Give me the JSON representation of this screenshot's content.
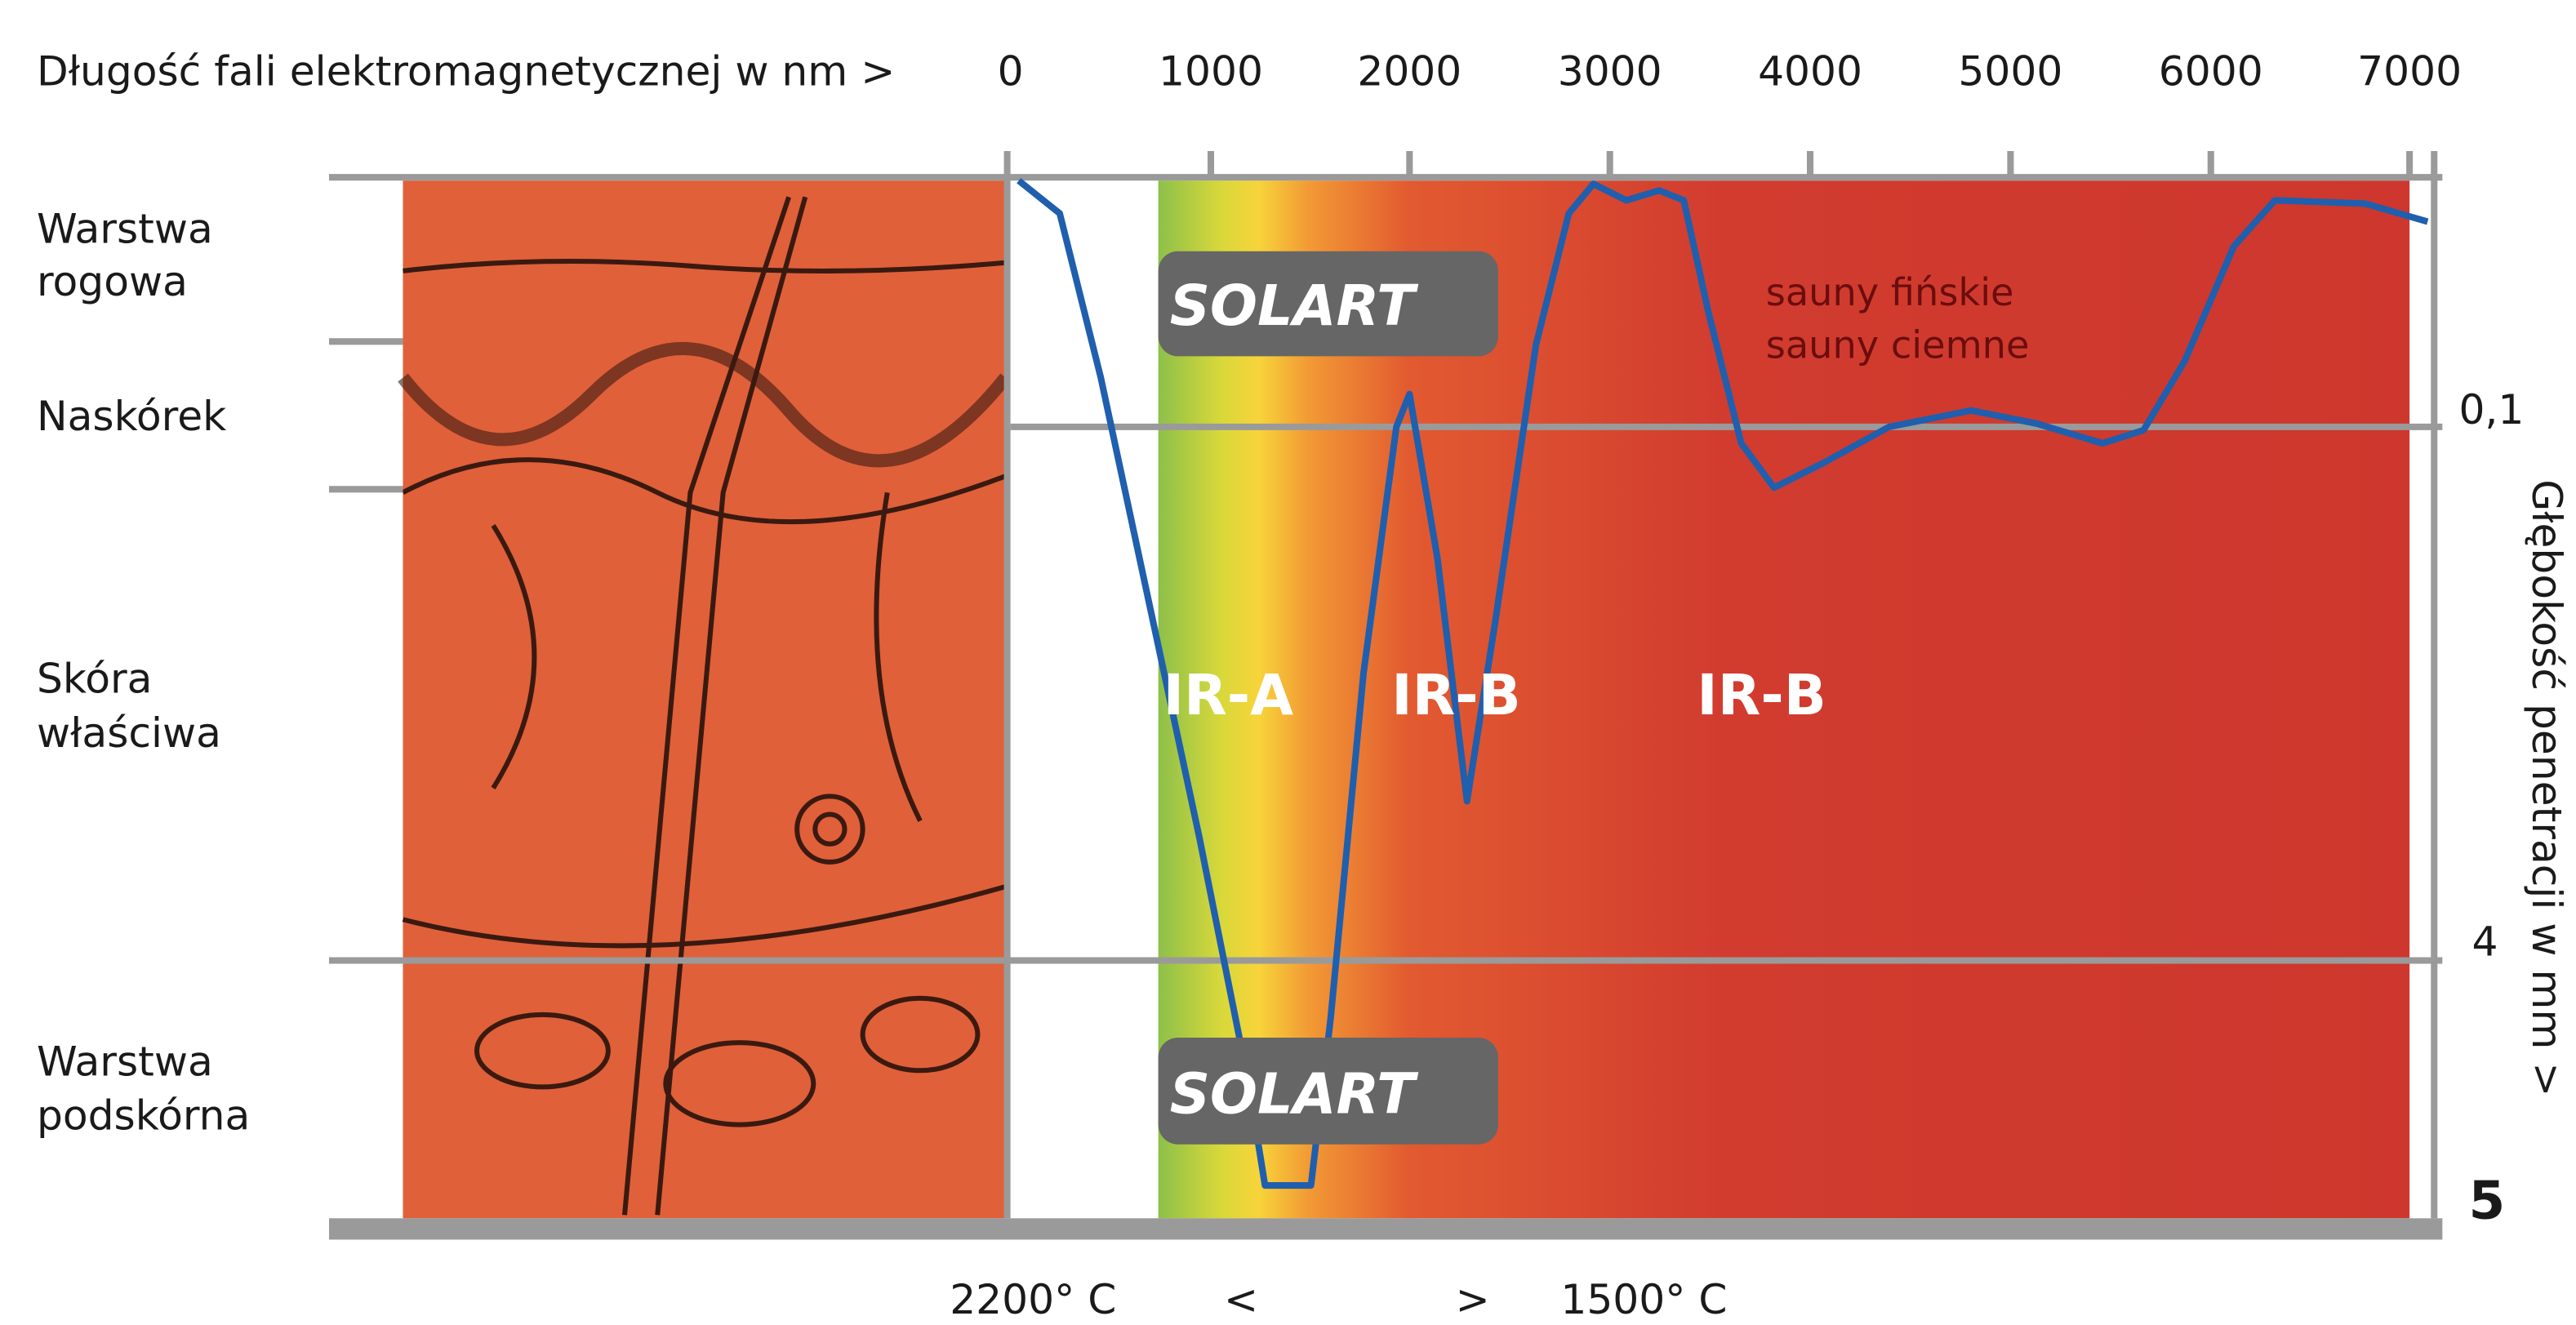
{
  "axis_top": {
    "label": "Długość fali elektromagnetycznej w nm >",
    "ticks": [
      "0",
      "1000",
      "2000",
      "3000",
      "4000",
      "5000",
      "6000",
      "7000"
    ]
  },
  "layers": [
    [
      "Warstwa",
      "rogowa"
    ],
    [
      "Naskórek"
    ],
    [
      "Skóra",
      "właściwa"
    ],
    [
      "Warstwa",
      "podskórna"
    ]
  ],
  "bands": [
    "IR-A",
    "IR-B",
    "IR-B"
  ],
  "logos": [
    "SOLART",
    "SOLART"
  ],
  "note": [
    "sauny fińskie",
    "sauny ciemne"
  ],
  "depth_axis": {
    "label": "Głębokość penetracji w mm >",
    "ticks": [
      "0,1",
      "4",
      "5"
    ]
  },
  "temperature": [
    "2200° C",
    "<",
    ">",
    "1500° C"
  ]
}
